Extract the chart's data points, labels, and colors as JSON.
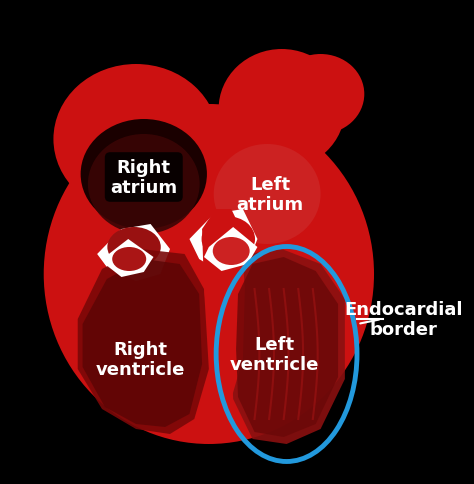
{
  "background_color": "#000000",
  "heart_outer_color": "#cc1111",
  "heart_inner_color": "#aa0a0a",
  "right_atrium_label": "Right\natrium",
  "left_atrium_label": "Left\natrium",
  "right_ventricle_label": "Right\nventricle",
  "left_ventricle_label": "Left\nventricle",
  "endocardial_label": "Endocardial\nborder",
  "label_color": "#ffffff",
  "right_atrium_label_color": "#ffffff",
  "right_atrium_bg": "#000000",
  "blue_border_color": "#2299dd",
  "white_color": "#ffffff",
  "label_fontsize": 13,
  "endocardial_fontsize": 13
}
